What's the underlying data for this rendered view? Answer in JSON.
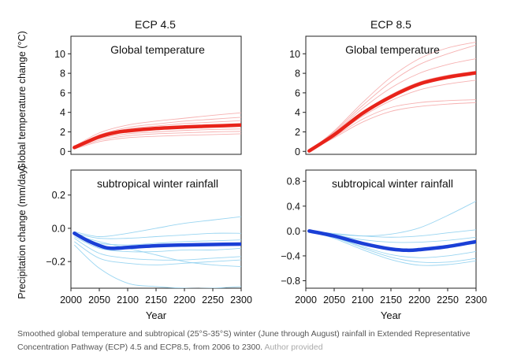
{
  "figure": {
    "caption": "Smoothed global temperature and subtropical (25°S-35°S) winter (June through August) rainfall in Extended Representative Concentration Pathway (ECP) 4.5 and ECP8.5, from 2006 to 2300.",
    "credit": "Author provided",
    "colors": {
      "temperature_mean": "#e8231a",
      "temperature_members": "#f5a8a8",
      "rainfall_mean": "#1a3fd6",
      "rainfall_members": "#8fd0ef",
      "frame": "#222222"
    }
  },
  "columns": [
    "ECP 4.5",
    "ECP 8.5"
  ],
  "row_labels": [
    "Global temperature change (°C)",
    "Precipitation change (mm/day)"
  ],
  "chart_data": [
    {
      "type": "line",
      "scenario": "ECP 4.5",
      "title": "Global temperature",
      "column_title": "ECP 4.5",
      "xlabel": "",
      "ylabel": "Global temperature change (°C)",
      "xlim": [
        2000,
        2300
      ],
      "ylim": [
        -0.3,
        11.8
      ],
      "yticks": [
        0,
        2,
        4,
        6,
        8,
        10
      ],
      "grid": false,
      "series": [
        {
          "role": "mean",
          "x": [
            2006,
            2050,
            2080,
            2100,
            2150,
            2200,
            2250,
            2300
          ],
          "values": [
            0.4,
            1.5,
            1.95,
            2.1,
            2.35,
            2.5,
            2.6,
            2.7
          ]
        },
        {
          "role": "member",
          "x": [
            2006,
            2050,
            2100,
            2150,
            2200,
            2250,
            2300
          ],
          "values": [
            0.5,
            1.9,
            2.7,
            3.1,
            3.4,
            3.7,
            3.95
          ]
        },
        {
          "role": "member",
          "x": [
            2006,
            2050,
            2100,
            2150,
            2200,
            2250,
            2300
          ],
          "values": [
            0.45,
            1.7,
            2.45,
            2.8,
            3.1,
            3.3,
            3.5
          ]
        },
        {
          "role": "member",
          "x": [
            2006,
            2050,
            2100,
            2150,
            2200,
            2250,
            2300
          ],
          "values": [
            0.4,
            1.6,
            2.3,
            2.6,
            2.85,
            3.0,
            3.15
          ]
        },
        {
          "role": "member",
          "x": [
            2006,
            2050,
            2100,
            2150,
            2200,
            2250,
            2300
          ],
          "values": [
            0.35,
            1.45,
            2.05,
            2.3,
            2.45,
            2.55,
            2.65
          ]
        },
        {
          "role": "member",
          "x": [
            2006,
            2050,
            2100,
            2150,
            2200,
            2250,
            2300
          ],
          "values": [
            0.3,
            1.3,
            1.8,
            2.0,
            2.15,
            2.25,
            2.3
          ]
        },
        {
          "role": "member",
          "x": [
            2006,
            2050,
            2100,
            2150,
            2200,
            2250,
            2300
          ],
          "values": [
            0.3,
            1.15,
            1.6,
            1.8,
            1.9,
            2.0,
            2.05
          ]
        },
        {
          "role": "member",
          "x": [
            2006,
            2050,
            2100,
            2150,
            2200,
            2250,
            2300
          ],
          "values": [
            0.25,
            1.0,
            1.4,
            1.55,
            1.65,
            1.72,
            1.8
          ]
        }
      ]
    },
    {
      "type": "line",
      "scenario": "ECP 8.5",
      "title": "Global temperature",
      "column_title": "ECP 8.5",
      "xlabel": "",
      "ylabel": "",
      "xlim": [
        2000,
        2300
      ],
      "ylim": [
        -0.3,
        11.8
      ],
      "yticks": [
        0,
        2,
        4,
        6,
        8,
        10
      ],
      "grid": false,
      "series": [
        {
          "role": "mean",
          "x": [
            2006,
            2050,
            2100,
            2150,
            2200,
            2250,
            2300
          ],
          "values": [
            0.05,
            1.7,
            3.9,
            5.6,
            6.9,
            7.6,
            8.05
          ]
        },
        {
          "role": "member",
          "x": [
            2006,
            2050,
            2100,
            2150,
            2200,
            2250,
            2300
          ],
          "values": [
            0.05,
            2.1,
            5.0,
            7.6,
            9.5,
            10.6,
            11.2
          ]
        },
        {
          "role": "member",
          "x": [
            2006,
            2050,
            2100,
            2150,
            2200,
            2250,
            2300
          ],
          "values": [
            0.05,
            2.0,
            4.7,
            7.1,
            8.9,
            10.0,
            10.9
          ]
        },
        {
          "role": "member",
          "x": [
            2006,
            2050,
            2100,
            2150,
            2200,
            2250,
            2300
          ],
          "values": [
            0.05,
            1.9,
            4.4,
            6.5,
            8.0,
            8.9,
            9.5
          ]
        },
        {
          "role": "member",
          "x": [
            2006,
            2050,
            2100,
            2150,
            2200,
            2250,
            2300
          ],
          "values": [
            0.05,
            1.75,
            4.0,
            5.8,
            7.1,
            7.8,
            8.2
          ]
        },
        {
          "role": "member",
          "x": [
            2006,
            2050,
            2100,
            2150,
            2200,
            2250,
            2300
          ],
          "values": [
            0.05,
            1.6,
            3.6,
            5.2,
            6.3,
            6.9,
            7.3
          ]
        },
        {
          "role": "member",
          "x": [
            2006,
            2050,
            2100,
            2150,
            2200,
            2250,
            2300
          ],
          "values": [
            0.05,
            1.5,
            3.3,
            4.5,
            5.0,
            5.2,
            5.3
          ]
        },
        {
          "role": "member",
          "x": [
            2006,
            2050,
            2100,
            2150,
            2200,
            2250,
            2300
          ],
          "values": [
            0.05,
            1.4,
            3.0,
            4.1,
            4.6,
            4.85,
            5.0
          ]
        }
      ]
    },
    {
      "type": "line",
      "scenario": "ECP 4.5",
      "title": "subtropical winter rainfall",
      "xlabel": "Year",
      "ylabel": "Precipitation change (mm/day)",
      "xlim": [
        2000,
        2300
      ],
      "ylim": [
        -0.36,
        0.35
      ],
      "xticks": [
        2000,
        2050,
        2100,
        2150,
        2200,
        2250,
        2300
      ],
      "yticks": [
        -0.2,
        0.0,
        0.2
      ],
      "grid": false,
      "series": [
        {
          "role": "mean",
          "x": [
            2006,
            2030,
            2060,
            2080,
            2100,
            2150,
            2200,
            2250,
            2300
          ],
          "values": [
            -0.03,
            -0.075,
            -0.115,
            -0.12,
            -0.115,
            -0.105,
            -0.1,
            -0.097,
            -0.095
          ]
        },
        {
          "role": "member",
          "x": [
            2006,
            2050,
            2100,
            2150,
            2200,
            2250,
            2300
          ],
          "values": [
            -0.02,
            -0.05,
            -0.03,
            0.0,
            0.03,
            0.05,
            0.07
          ]
        },
        {
          "role": "member",
          "x": [
            2006,
            2050,
            2100,
            2150,
            2200,
            2250,
            2300
          ],
          "values": [
            -0.03,
            -0.06,
            -0.06,
            -0.05,
            -0.04,
            -0.03,
            -0.03
          ]
        },
        {
          "role": "member",
          "x": [
            2006,
            2050,
            2100,
            2150,
            2200,
            2250,
            2300
          ],
          "values": [
            -0.04,
            -0.09,
            -0.1,
            -0.09,
            -0.08,
            -0.075,
            -0.07
          ]
        },
        {
          "role": "member",
          "x": [
            2006,
            2050,
            2100,
            2150,
            2200,
            2250,
            2300
          ],
          "values": [
            -0.05,
            -0.12,
            -0.14,
            -0.14,
            -0.13,
            -0.13,
            -0.12
          ]
        },
        {
          "role": "member",
          "x": [
            2006,
            2050,
            2100,
            2150,
            2200,
            2250,
            2300
          ],
          "values": [
            -0.06,
            -0.15,
            -0.18,
            -0.19,
            -0.19,
            -0.18,
            -0.17
          ]
        },
        {
          "role": "member",
          "x": [
            2006,
            2050,
            2100,
            2150,
            2200,
            2250,
            2300
          ],
          "values": [
            -0.08,
            -0.18,
            -0.21,
            -0.22,
            -0.21,
            -0.2,
            -0.19
          ]
        },
        {
          "role": "member",
          "x": [
            2006,
            2050,
            2100,
            2150,
            2200,
            2250,
            2300
          ],
          "values": [
            -0.1,
            -0.24,
            -0.33,
            -0.35,
            -0.36,
            -0.36,
            -0.35
          ]
        },
        {
          "role": "member",
          "x": [
            2006,
            2050,
            2100,
            2150,
            2200,
            2250,
            2300
          ],
          "values": [
            -0.04,
            -0.08,
            -0.12,
            -0.16,
            -0.2,
            -0.22,
            -0.23
          ]
        }
      ]
    },
    {
      "type": "line",
      "scenario": "ECP 8.5",
      "title": "subtropical winter rainfall",
      "xlabel": "Year",
      "ylabel": "",
      "xlim": [
        2000,
        2300
      ],
      "ylim": [
        -0.92,
        0.98
      ],
      "xticks": [
        2000,
        2050,
        2100,
        2150,
        2200,
        2250,
        2300
      ],
      "yticks": [
        -0.8,
        -0.4,
        0.0,
        0.4,
        0.8
      ],
      "grid": false,
      "series": [
        {
          "role": "mean",
          "x": [
            2006,
            2050,
            2100,
            2150,
            2180,
            2200,
            2250,
            2300
          ],
          "values": [
            0.0,
            -0.08,
            -0.2,
            -0.29,
            -0.31,
            -0.3,
            -0.25,
            -0.17
          ]
        },
        {
          "role": "member",
          "x": [
            2006,
            2050,
            2100,
            2150,
            2200,
            2250,
            2300
          ],
          "values": [
            0.0,
            -0.05,
            -0.08,
            -0.05,
            0.05,
            0.25,
            0.48
          ]
        },
        {
          "role": "member",
          "x": [
            2006,
            2050,
            2100,
            2150,
            2200,
            2250,
            2300
          ],
          "values": [
            0.0,
            -0.04,
            -0.08,
            -0.1,
            -0.08,
            -0.03,
            0.02
          ]
        },
        {
          "role": "member",
          "x": [
            2006,
            2050,
            2100,
            2150,
            2200,
            2250,
            2300
          ],
          "values": [
            0.0,
            -0.06,
            -0.14,
            -0.18,
            -0.18,
            -0.15,
            -0.1
          ]
        },
        {
          "role": "member",
          "x": [
            2006,
            2050,
            2100,
            2150,
            2200,
            2250,
            2300
          ],
          "values": [
            0.0,
            -0.08,
            -0.2,
            -0.28,
            -0.3,
            -0.26,
            -0.2
          ]
        },
        {
          "role": "member",
          "x": [
            2006,
            2050,
            2100,
            2150,
            2200,
            2250,
            2300
          ],
          "values": [
            0.0,
            -0.1,
            -0.25,
            -0.38,
            -0.43,
            -0.4,
            -0.33
          ]
        },
        {
          "role": "member",
          "x": [
            2006,
            2050,
            2100,
            2150,
            2200,
            2250,
            2300
          ],
          "values": [
            0.0,
            -0.12,
            -0.3,
            -0.46,
            -0.55,
            -0.54,
            -0.48
          ]
        },
        {
          "role": "member",
          "x": [
            2006,
            2050,
            2100,
            2150,
            2200,
            2250,
            2300
          ],
          "values": [
            0.0,
            -0.1,
            -0.27,
            -0.42,
            -0.5,
            -0.5,
            -0.44
          ]
        }
      ]
    }
  ]
}
